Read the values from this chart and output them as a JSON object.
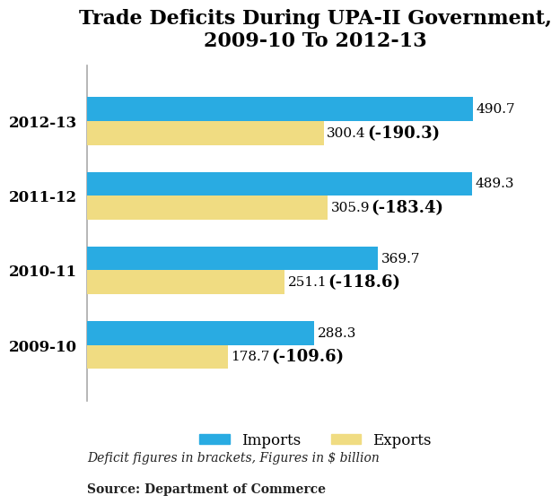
{
  "title": "Trade Deficits During UPA-II Government,\n2009-10 To 2012-13",
  "categories": [
    "2009-10",
    "2010-11",
    "2011-12",
    "2012-13"
  ],
  "imports": [
    288.3,
    369.7,
    489.3,
    490.7
  ],
  "exports": [
    178.7,
    251.1,
    305.9,
    300.4
  ],
  "deficits": [
    "(-109.6)",
    "(-118.6)",
    "(-183.4)",
    "(-190.3)"
  ],
  "imports_color": "#29ABE2",
  "exports_color": "#F0DC82",
  "bar_height": 0.32,
  "xlim": [
    0,
    580
  ],
  "footnote_italic": "Deficit figures in brackets, Figures in $ billion",
  "footnote_bold": "Source: Department of Commerce",
  "title_fontsize": 16,
  "tick_fontsize": 12,
  "legend_fontsize": 12,
  "footnote_fontsize": 10,
  "value_fontsize": 11,
  "deficit_fontsize": 13,
  "background_color": "#ffffff"
}
